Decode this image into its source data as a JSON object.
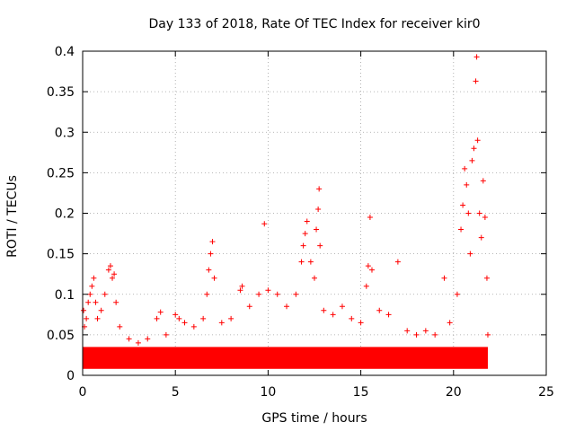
{
  "chart_data": {
    "type": "scatter",
    "title": "Day 133 of 2018, Rate Of TEC Index for receiver kir0",
    "xlabel": "GPS time / hours",
    "ylabel": "ROTI / TECUs",
    "xlim": [
      0,
      25
    ],
    "ylim": [
      0,
      0.4
    ],
    "x_ticks": [
      0,
      5,
      10,
      15,
      20,
      25
    ],
    "y_ticks": [
      0,
      0.05,
      0.1,
      0.15,
      0.2,
      0.25,
      0.3,
      0.35,
      0.4
    ],
    "x_tick_labels": [
      "0",
      "5",
      "10",
      "15",
      "20",
      "25"
    ],
    "y_tick_labels": [
      "0",
      "0.05",
      "0.1",
      "0.15",
      "0.2",
      "0.25",
      "0.3",
      "0.35",
      "0.4"
    ],
    "grid": true,
    "marker": "+",
    "marker_color": "#ff0000",
    "series": [
      {
        "points": [
          [
            0.05,
            0.08
          ],
          [
            0.1,
            0.06
          ],
          [
            0.2,
            0.07
          ],
          [
            0.3,
            0.09
          ],
          [
            0.4,
            0.1
          ],
          [
            0.5,
            0.11
          ],
          [
            0.6,
            0.12
          ],
          [
            0.7,
            0.09
          ],
          [
            0.8,
            0.07
          ],
          [
            1.0,
            0.08
          ],
          [
            1.2,
            0.1
          ],
          [
            1.4,
            0.13
          ],
          [
            1.5,
            0.135
          ],
          [
            1.6,
            0.12
          ],
          [
            1.7,
            0.125
          ],
          [
            1.8,
            0.09
          ],
          [
            2.0,
            0.06
          ],
          [
            2.5,
            0.045
          ],
          [
            3.0,
            0.04
          ],
          [
            3.5,
            0.045
          ],
          [
            4.0,
            0.07
          ],
          [
            4.2,
            0.078
          ],
          [
            4.5,
            0.05
          ],
          [
            5.0,
            0.075
          ],
          [
            5.2,
            0.07
          ],
          [
            5.5,
            0.065
          ],
          [
            6.0,
            0.06
          ],
          [
            6.5,
            0.07
          ],
          [
            6.7,
            0.1
          ],
          [
            6.8,
            0.13
          ],
          [
            6.9,
            0.15
          ],
          [
            7.0,
            0.165
          ],
          [
            7.1,
            0.12
          ],
          [
            7.5,
            0.065
          ],
          [
            8.0,
            0.07
          ],
          [
            8.5,
            0.105
          ],
          [
            8.6,
            0.11
          ],
          [
            9.0,
            0.085
          ],
          [
            9.5,
            0.1
          ],
          [
            9.8,
            0.187
          ],
          [
            10.0,
            0.105
          ],
          [
            10.5,
            0.1
          ],
          [
            11.0,
            0.085
          ],
          [
            11.5,
            0.1
          ],
          [
            11.8,
            0.14
          ],
          [
            11.9,
            0.16
          ],
          [
            12.0,
            0.175
          ],
          [
            12.1,
            0.19
          ],
          [
            12.3,
            0.14
          ],
          [
            12.5,
            0.12
          ],
          [
            12.6,
            0.18
          ],
          [
            12.7,
            0.205
          ],
          [
            12.75,
            0.23
          ],
          [
            12.8,
            0.16
          ],
          [
            13.0,
            0.08
          ],
          [
            13.5,
            0.075
          ],
          [
            14.0,
            0.085
          ],
          [
            14.5,
            0.07
          ],
          [
            15.0,
            0.065
          ],
          [
            15.3,
            0.11
          ],
          [
            15.4,
            0.135
          ],
          [
            15.5,
            0.195
          ],
          [
            15.6,
            0.13
          ],
          [
            16.0,
            0.08
          ],
          [
            16.5,
            0.075
          ],
          [
            17.0,
            0.14
          ],
          [
            17.5,
            0.055
          ],
          [
            18.0,
            0.05
          ],
          [
            18.5,
            0.055
          ],
          [
            19.0,
            0.05
          ],
          [
            19.5,
            0.12
          ],
          [
            19.8,
            0.065
          ],
          [
            20.2,
            0.1
          ],
          [
            20.4,
            0.18
          ],
          [
            20.5,
            0.21
          ],
          [
            20.6,
            0.255
          ],
          [
            20.7,
            0.235
          ],
          [
            20.8,
            0.2
          ],
          [
            20.9,
            0.15
          ],
          [
            21.0,
            0.265
          ],
          [
            21.1,
            0.28
          ],
          [
            21.2,
            0.363
          ],
          [
            21.25,
            0.393
          ],
          [
            21.3,
            0.29
          ],
          [
            21.4,
            0.2
          ],
          [
            21.5,
            0.17
          ],
          [
            21.6,
            0.24
          ],
          [
            21.7,
            0.195
          ],
          [
            21.8,
            0.12
          ],
          [
            21.85,
            0.05
          ]
        ]
      }
    ]
  }
}
